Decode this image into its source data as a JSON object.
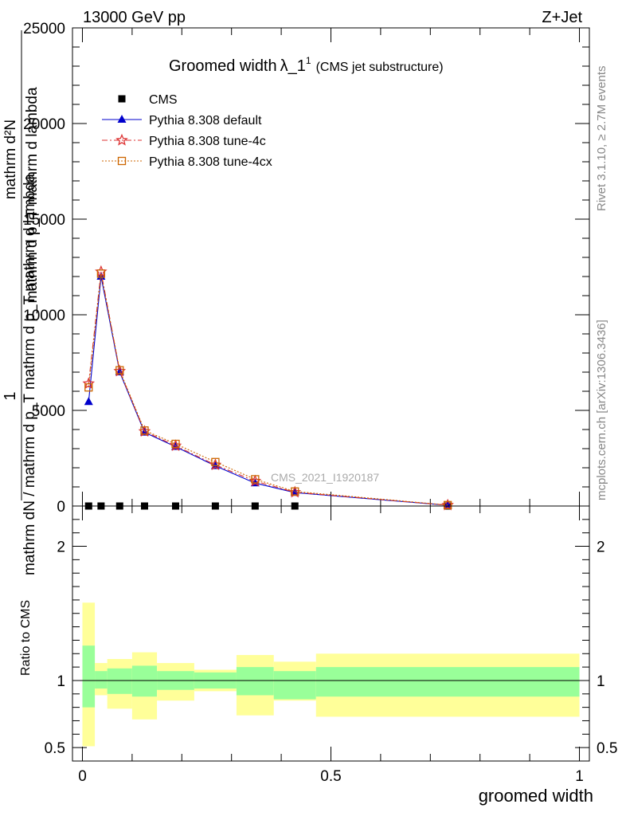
{
  "header": {
    "energy_label": "13000 GeV pp",
    "process_label": "Z+Jet"
  },
  "side_labels": {
    "rivet": "Rivet 3.1.10, ≥ 2.7M events",
    "mcplots": "mcplots.cern.ch [arXiv:1306.3436]"
  },
  "watermark": "CMS_2021_I1920187",
  "chart_data": [
    {
      "type": "line",
      "title_main": "Groomed width",
      "title_lambda": "λ_1",
      "title_sup": "1",
      "title_note": "(CMS jet substructure)",
      "ylabel_lines": [
        "1",
        "mathrm d²N",
        "mathrm d p_T mathrm d lambda",
        "mathrm dN / mathrm d p_T mathrm d p_T mathrm d lambda"
      ],
      "ylabel_frac_top": "mathrm d²N",
      "ylabel_frac_mid": "mathrm d p_T mathrm d lambda",
      "ylabel_full": "mathrm dN / mathrm d p_T mathrm d p_T mathrm d lambda",
      "ylabel_one": "1",
      "xlim": [
        -0.02,
        1.02
      ],
      "ylim": [
        0,
        25000
      ],
      "yticks": [
        0,
        5000,
        10000,
        15000,
        20000,
        25000
      ],
      "ytick_labels": [
        "0",
        "5000",
        "10000",
        "15000",
        "20000",
        "25000"
      ],
      "legend_position": "top-left",
      "series": [
        {
          "name": "CMS",
          "color": "#000000",
          "marker": "square",
          "x": [
            0.0125,
            0.0375,
            0.075,
            0.125,
            0.1875,
            0.2675,
            0.3475,
            0.4275,
            0.735
          ],
          "y": [
            0,
            0,
            0,
            0,
            0,
            0,
            0,
            0,
            0
          ]
        },
        {
          "name": "Pythia 8.308 default",
          "color": "#0000cc",
          "marker": "triangle",
          "dash": "solid",
          "x": [
            0.0125,
            0.0375,
            0.075,
            0.125,
            0.1875,
            0.2675,
            0.3475,
            0.4275,
            0.735
          ],
          "y": [
            5450,
            12000,
            7000,
            3850,
            3100,
            2100,
            1200,
            700,
            40
          ]
        },
        {
          "name": "Pythia 8.308 tune-4c",
          "color": "#dd3333",
          "marker": "star",
          "dash": "dashdot",
          "x": [
            0.0125,
            0.0375,
            0.075,
            0.125,
            0.1875,
            0.2675,
            0.3475,
            0.4275,
            0.735
          ],
          "y": [
            6400,
            12250,
            7050,
            3900,
            3150,
            2150,
            1300,
            720,
            45
          ]
        },
        {
          "name": "Pythia 8.308 tune-4cx",
          "color": "#cc6600",
          "marker": "open-square",
          "dash": "dotted",
          "x": [
            0.0125,
            0.0375,
            0.075,
            0.125,
            0.1875,
            0.2675,
            0.3475,
            0.4275,
            0.735
          ],
          "y": [
            6200,
            12150,
            7100,
            3950,
            3250,
            2300,
            1400,
            760,
            50
          ]
        }
      ]
    },
    {
      "type": "area",
      "ylabel": "Ratio to CMS",
      "xlabel": "groomed width",
      "xlim": [
        -0.02,
        1.02
      ],
      "ylim": [
        0.4,
        2.3
      ],
      "yticks": [
        0.5,
        1,
        2
      ],
      "ytick_labels": [
        "0.5",
        "1",
        "2"
      ],
      "xticks": [
        0,
        0.5,
        1
      ],
      "xtick_labels": [
        "0",
        "0.5",
        "1"
      ],
      "reference_line": 1,
      "bins": [
        {
          "lo": 0.0,
          "hi": 0.025,
          "green": [
            0.8,
            1.26
          ],
          "yellow": [
            0.51,
            1.58
          ]
        },
        {
          "lo": 0.025,
          "hi": 0.05,
          "green": [
            0.94,
            1.07
          ],
          "yellow": [
            0.89,
            1.13
          ]
        },
        {
          "lo": 0.05,
          "hi": 0.1,
          "green": [
            0.9,
            1.09
          ],
          "yellow": [
            0.79,
            1.16
          ]
        },
        {
          "lo": 0.1,
          "hi": 0.15,
          "green": [
            0.88,
            1.11
          ],
          "yellow": [
            0.71,
            1.21
          ]
        },
        {
          "lo": 0.15,
          "hi": 0.225,
          "green": [
            0.93,
            1.07
          ],
          "yellow": [
            0.85,
            1.13
          ]
        },
        {
          "lo": 0.225,
          "hi": 0.31,
          "green": [
            0.94,
            1.06
          ],
          "yellow": [
            0.92,
            1.08
          ]
        },
        {
          "lo": 0.31,
          "hi": 0.385,
          "green": [
            0.89,
            1.1
          ],
          "yellow": [
            0.74,
            1.19
          ]
        },
        {
          "lo": 0.385,
          "hi": 0.47,
          "green": [
            0.86,
            1.07
          ],
          "yellow": [
            0.85,
            1.14
          ]
        },
        {
          "lo": 0.47,
          "hi": 1.0,
          "green": [
            0.88,
            1.1
          ],
          "yellow": [
            0.73,
            1.2
          ]
        }
      ]
    }
  ]
}
